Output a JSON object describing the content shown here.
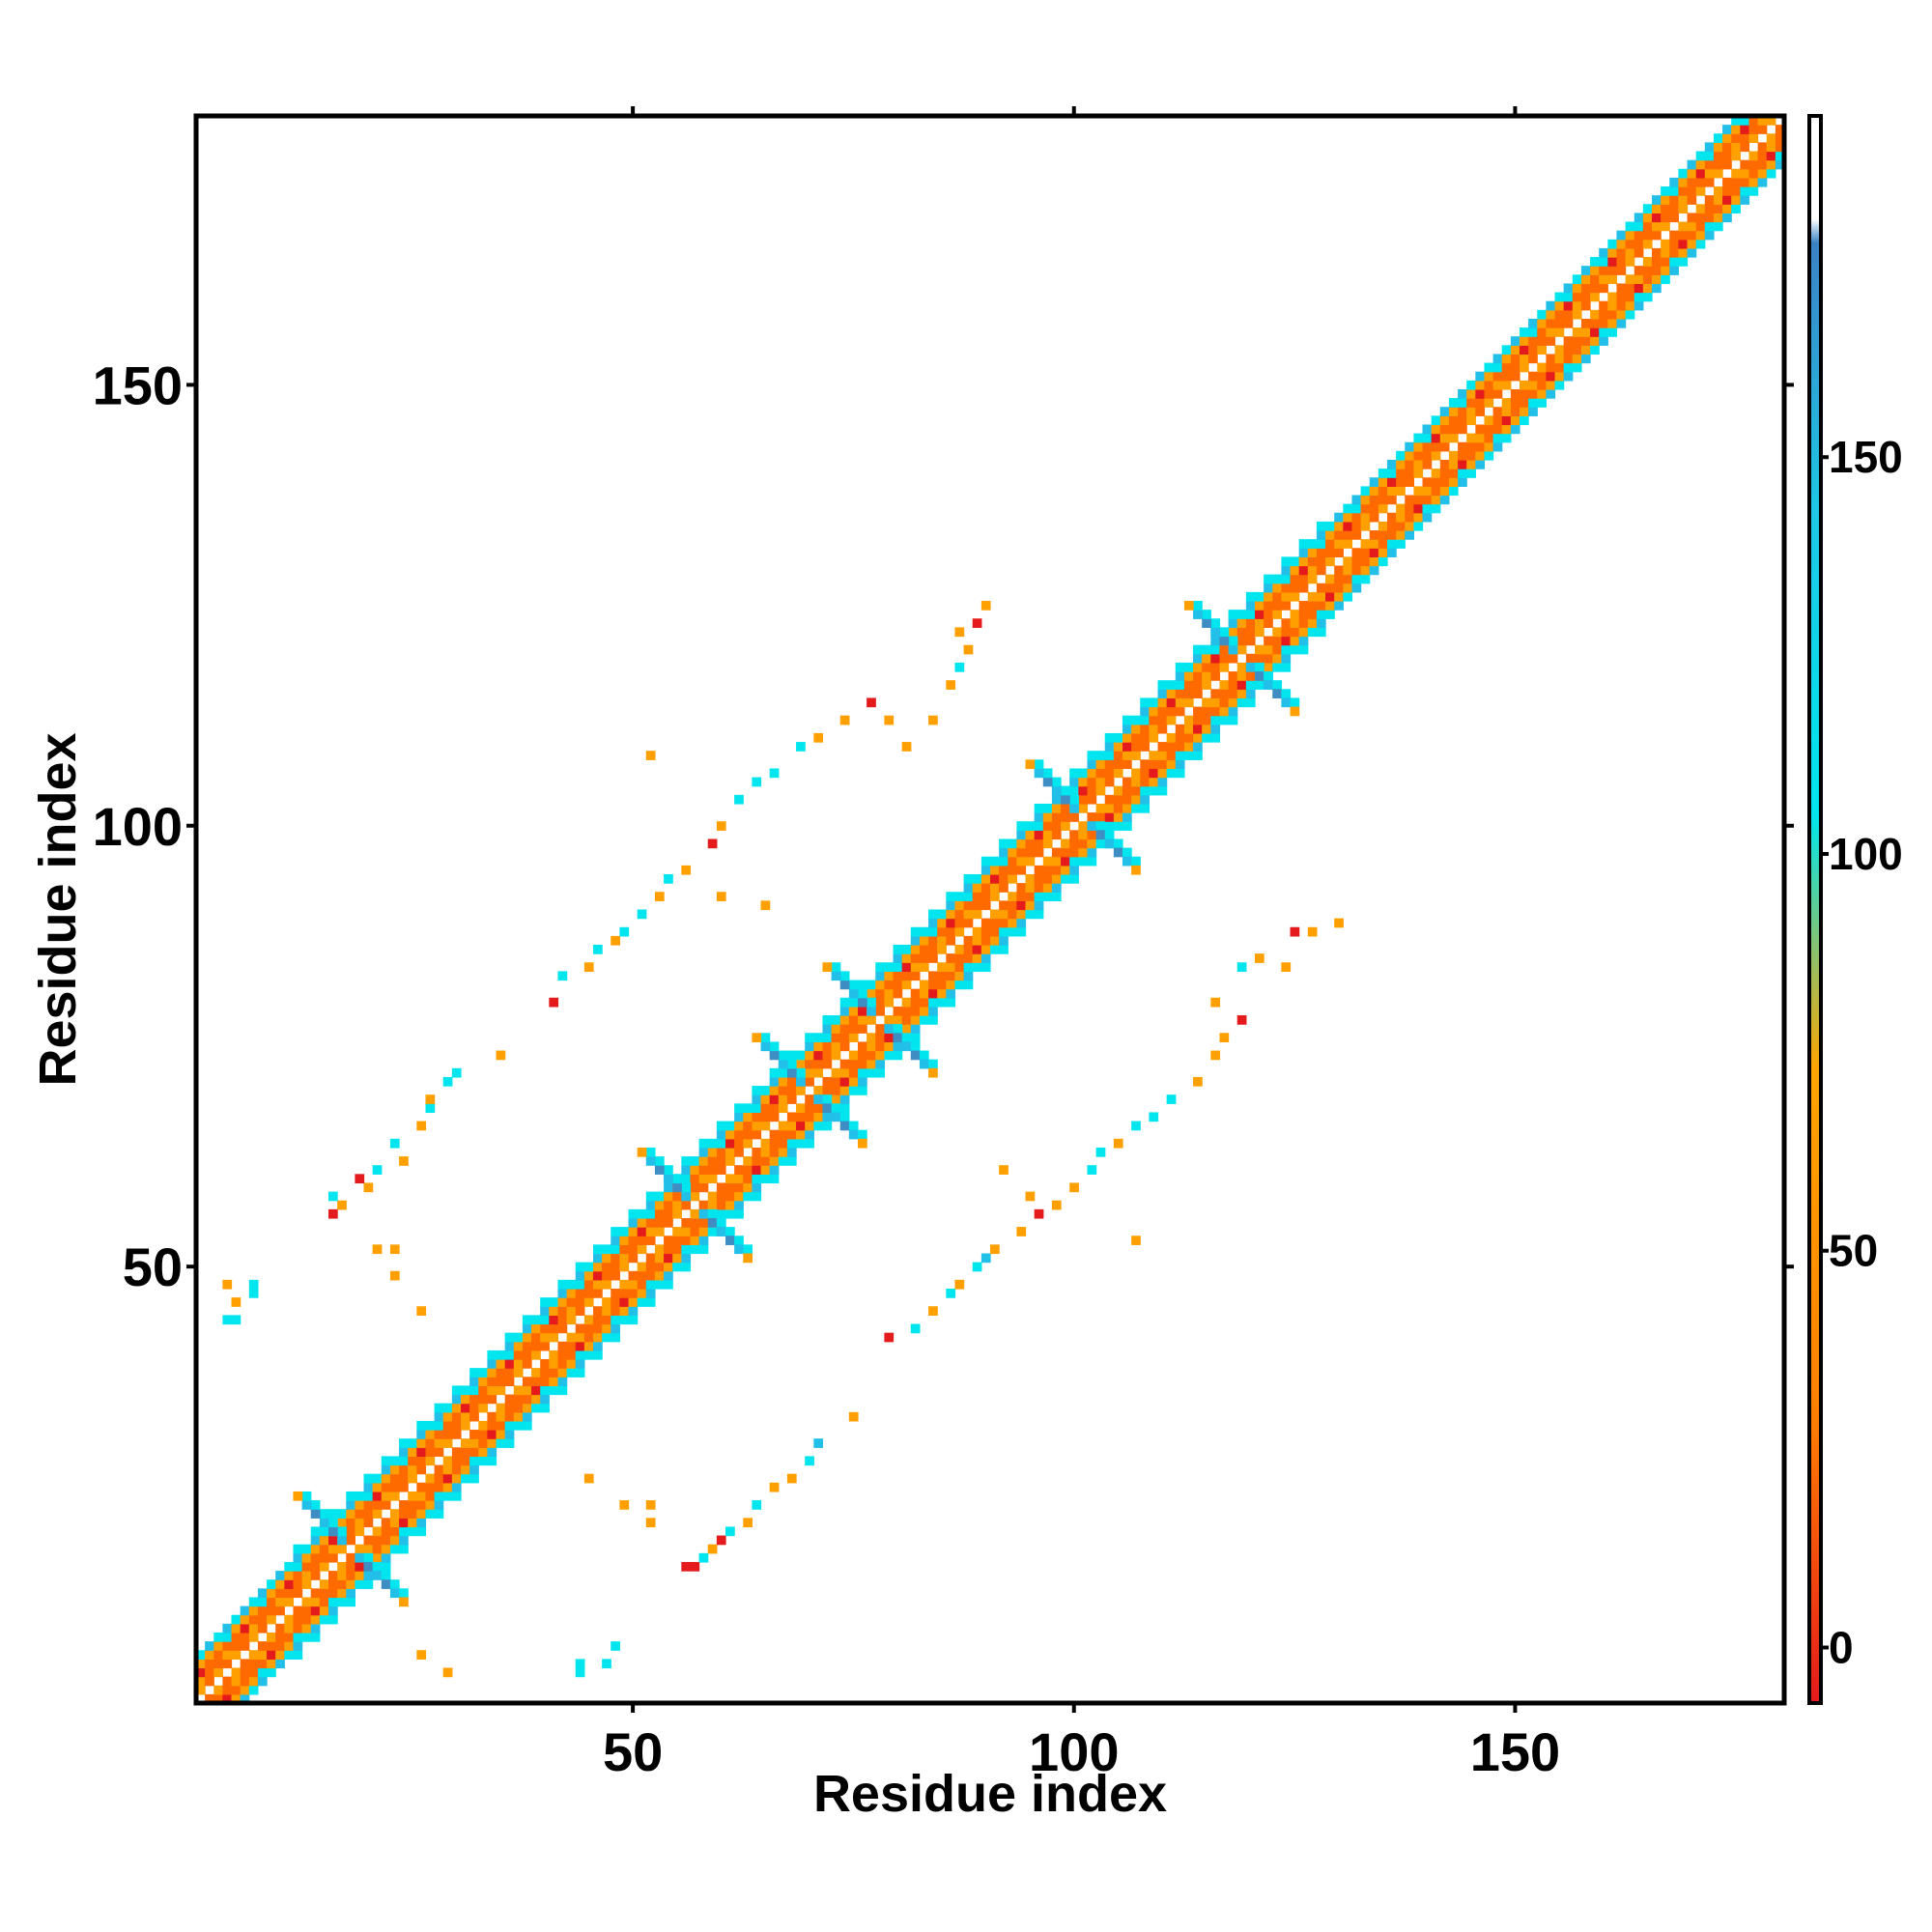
{
  "chart_data": {
    "type": "heatmap",
    "title": "",
    "xlabel": "Residue index",
    "ylabel": "Residue index",
    "xlim": [
      1,
      180
    ],
    "ylim": [
      1,
      180
    ],
    "x_ticks": [
      50,
      100,
      150
    ],
    "y_ticks": [
      50,
      100,
      150
    ],
    "x_tick_labels": [
      "50",
      "100",
      "150"
    ],
    "y_tick_labels": [
      "50",
      "100",
      "150"
    ],
    "colorbar": {
      "ticks": [
        0,
        50,
        100,
        150
      ],
      "tick_labels": [
        "0",
        "50",
        "100",
        "150"
      ],
      "range": [
        -7,
        193
      ],
      "bands": [
        {
          "from": -7,
          "to": 30,
          "color": "#e41a1c"
        },
        {
          "from": 30,
          "to": 80,
          "color": "#ff7f00"
        },
        {
          "from": 80,
          "to": 180,
          "color": "#00e5ee"
        },
        {
          "from": 180,
          "to": 193,
          "color": "#ffffff"
        }
      ],
      "color_stops": [
        "#e41a1c",
        "#ff7f00",
        "#ffa500",
        "#00e5ee",
        "#1ec8e6",
        "#3b82c4",
        "#ffffff"
      ]
    },
    "colors": {
      "red": "#e41a1c",
      "dark_orange": "#ff6a00",
      "orange": "#ffa000",
      "cyan": "#00e5ee",
      "light_blue": "#22bfe8",
      "steel_blue": "#3e8ec4"
    },
    "diagonal_band": {
      "from_residue": 1,
      "to_residue": 180,
      "half_width": 6
    },
    "crossings": [
      {
        "x": 18,
        "y": 18
      },
      {
        "x": 57,
        "y": 57
      },
      {
        "x": 70,
        "y": 70
      },
      {
        "x": 78,
        "y": 78
      },
      {
        "x": 101,
        "y": 101
      },
      {
        "x": 119,
        "y": 119
      }
    ],
    "off_diagonal_contacts": [
      {
        "x": 4,
        "y": 44,
        "v": 100
      },
      {
        "x": 5,
        "y": 44,
        "v": 100
      },
      {
        "x": 5,
        "y": 46,
        "v": 60
      },
      {
        "x": 7,
        "y": 47,
        "v": 100
      },
      {
        "x": 7,
        "y": 48,
        "v": 100
      },
      {
        "x": 4,
        "y": 48,
        "v": 60
      },
      {
        "x": 16,
        "y": 56,
        "v": 20
      },
      {
        "x": 17,
        "y": 57,
        "v": 60
      },
      {
        "x": 16,
        "y": 58,
        "v": 100
      },
      {
        "x": 20,
        "y": 59,
        "v": 60
      },
      {
        "x": 19,
        "y": 60,
        "v": 20
      },
      {
        "x": 21,
        "y": 61,
        "v": 100
      },
      {
        "x": 24,
        "y": 62,
        "v": 60
      },
      {
        "x": 23,
        "y": 64,
        "v": 100
      },
      {
        "x": 26,
        "y": 66,
        "v": 60
      },
      {
        "x": 27,
        "y": 68,
        "v": 100
      },
      {
        "x": 27,
        "y": 69,
        "v": 60
      },
      {
        "x": 29,
        "y": 71,
        "v": 100
      },
      {
        "x": 30,
        "y": 72,
        "v": 100
      },
      {
        "x": 35,
        "y": 74,
        "v": 60
      },
      {
        "x": 21,
        "y": 52,
        "v": 60
      },
      {
        "x": 23,
        "y": 52,
        "v": 60
      },
      {
        "x": 23,
        "y": 49,
        "v": 60
      },
      {
        "x": 26,
        "y": 45,
        "v": 60
      },
      {
        "x": 41,
        "y": 80,
        "v": 20
      },
      {
        "x": 42,
        "y": 83,
        "v": 100
      },
      {
        "x": 45,
        "y": 84,
        "v": 60
      },
      {
        "x": 46,
        "y": 86,
        "v": 100
      },
      {
        "x": 48,
        "y": 87,
        "v": 60
      },
      {
        "x": 49,
        "y": 88,
        "v": 100
      },
      {
        "x": 51,
        "y": 90,
        "v": 100
      },
      {
        "x": 53,
        "y": 92,
        "v": 60
      },
      {
        "x": 54,
        "y": 94,
        "v": 100
      },
      {
        "x": 56,
        "y": 95,
        "v": 60
      },
      {
        "x": 59,
        "y": 98,
        "v": 20
      },
      {
        "x": 60,
        "y": 100,
        "v": 60
      },
      {
        "x": 62,
        "y": 103,
        "v": 100
      },
      {
        "x": 64,
        "y": 105,
        "v": 100
      },
      {
        "x": 66,
        "y": 106,
        "v": 100
      },
      {
        "x": 69,
        "y": 109,
        "v": 100
      },
      {
        "x": 71,
        "y": 110,
        "v": 60
      },
      {
        "x": 74,
        "y": 112,
        "v": 60
      },
      {
        "x": 77,
        "y": 114,
        "v": 20
      },
      {
        "x": 79,
        "y": 112,
        "v": 60
      },
      {
        "x": 81,
        "y": 109,
        "v": 60
      },
      {
        "x": 84,
        "y": 112,
        "v": 60
      },
      {
        "x": 86,
        "y": 116,
        "v": 60
      },
      {
        "x": 87,
        "y": 118,
        "v": 100
      },
      {
        "x": 88,
        "y": 120,
        "v": 60
      },
      {
        "x": 89,
        "y": 123,
        "v": 20
      },
      {
        "x": 90,
        "y": 125,
        "v": 60
      },
      {
        "x": 87,
        "y": 122,
        "v": 60
      },
      {
        "x": 52,
        "y": 108,
        "v": 60
      },
      {
        "x": 60,
        "y": 92,
        "v": 60
      },
      {
        "x": 65,
        "y": 91,
        "v": 60
      },
      {
        "x": 44,
        "y": 4,
        "v": 100
      },
      {
        "x": 44,
        "y": 5,
        "v": 100
      },
      {
        "x": 47,
        "y": 5,
        "v": 100
      },
      {
        "x": 48,
        "y": 7,
        "v": 100
      },
      {
        "x": 29,
        "y": 4,
        "v": 60
      },
      {
        "x": 26,
        "y": 6,
        "v": 60
      },
      {
        "x": 56,
        "y": 16,
        "v": 20
      },
      {
        "x": 57,
        "y": 16,
        "v": 20
      },
      {
        "x": 58,
        "y": 17,
        "v": 100
      },
      {
        "x": 59,
        "y": 18,
        "v": 60
      },
      {
        "x": 60,
        "y": 19,
        "v": 20
      },
      {
        "x": 61,
        "y": 20,
        "v": 100
      },
      {
        "x": 63,
        "y": 21,
        "v": 60
      },
      {
        "x": 64,
        "y": 23,
        "v": 100
      },
      {
        "x": 66,
        "y": 25,
        "v": 60
      },
      {
        "x": 68,
        "y": 26,
        "v": 60
      },
      {
        "x": 70,
        "y": 28,
        "v": 100
      },
      {
        "x": 71,
        "y": 30,
        "v": 120
      },
      {
        "x": 75,
        "y": 33,
        "v": 60
      },
      {
        "x": 52,
        "y": 21,
        "v": 60
      },
      {
        "x": 52,
        "y": 23,
        "v": 60
      },
      {
        "x": 49,
        "y": 23,
        "v": 60
      },
      {
        "x": 45,
        "y": 26,
        "v": 60
      },
      {
        "x": 79,
        "y": 42,
        "v": 20
      },
      {
        "x": 82,
        "y": 43,
        "v": 100
      },
      {
        "x": 84,
        "y": 45,
        "v": 60
      },
      {
        "x": 86,
        "y": 47,
        "v": 100
      },
      {
        "x": 87,
        "y": 48,
        "v": 60
      },
      {
        "x": 89,
        "y": 50,
        "v": 100
      },
      {
        "x": 90,
        "y": 51,
        "v": 120
      },
      {
        "x": 91,
        "y": 52,
        "v": 60
      },
      {
        "x": 94,
        "y": 54,
        "v": 60
      },
      {
        "x": 96,
        "y": 56,
        "v": 20
      },
      {
        "x": 98,
        "y": 57,
        "v": 60
      },
      {
        "x": 100,
        "y": 59,
        "v": 60
      },
      {
        "x": 102,
        "y": 61,
        "v": 100
      },
      {
        "x": 103,
        "y": 63,
        "v": 100
      },
      {
        "x": 105,
        "y": 64,
        "v": 60
      },
      {
        "x": 107,
        "y": 66,
        "v": 100
      },
      {
        "x": 109,
        "y": 67,
        "v": 100
      },
      {
        "x": 111,
        "y": 69,
        "v": 100
      },
      {
        "x": 114,
        "y": 71,
        "v": 60
      },
      {
        "x": 116,
        "y": 74,
        "v": 60
      },
      {
        "x": 117,
        "y": 76,
        "v": 60
      },
      {
        "x": 119,
        "y": 78,
        "v": 20
      },
      {
        "x": 116,
        "y": 80,
        "v": 60
      },
      {
        "x": 119,
        "y": 84,
        "v": 100
      },
      {
        "x": 121,
        "y": 85,
        "v": 60
      },
      {
        "x": 124,
        "y": 84,
        "v": 60
      },
      {
        "x": 125,
        "y": 88,
        "v": 20
      },
      {
        "x": 127,
        "y": 88,
        "v": 60
      },
      {
        "x": 130,
        "y": 89,
        "v": 60
      },
      {
        "x": 92,
        "y": 61,
        "v": 60
      },
      {
        "x": 95,
        "y": 58,
        "v": 60
      },
      {
        "x": 107,
        "y": 53,
        "v": 60
      }
    ]
  }
}
